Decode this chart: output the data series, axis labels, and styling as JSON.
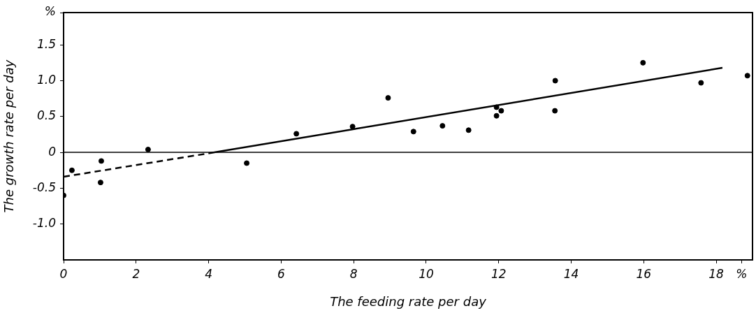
{
  "chart_data": {
    "type": "scatter",
    "xlabel": "The feeding rate per day",
    "ylabel": "The growth rate per day",
    "series": [
      {
        "color": "#000000",
        "x": [
          0,
          0.23,
          1.04,
          1.02,
          2.33,
          5.05,
          6.42,
          7.97,
          8.95,
          9.65,
          10.45,
          11.17,
          11.94,
          12.07,
          11.94,
          13.56,
          13.55,
          15.98,
          17.58,
          18.86
        ],
        "values": [
          -0.6,
          -0.25,
          -0.12,
          -0.42,
          0.04,
          -0.15,
          0.26,
          0.36,
          0.76,
          0.29,
          0.37,
          0.31,
          0.63,
          0.58,
          0.51,
          1.0,
          0.58,
          1.25,
          0.97,
          1.07
        ]
      },
      {
        "type": "line",
        "color": "#000000",
        "line_style": "dashed",
        "marker": "none",
        "x": [
          0,
          4.16
        ],
        "values": [
          -0.34,
          0
        ]
      },
      {
        "type": "line",
        "color": "#000000",
        "line_style": "solid",
        "marker": "none",
        "x": [
          4.16,
          18.17
        ],
        "values": [
          0,
          1.18
        ]
      }
    ],
    "marker": "circle",
    "xlim": [
      0,
      19
    ],
    "xticks": [
      0,
      2,
      4,
      6,
      8,
      10,
      12,
      14,
      16,
      18,
      {
        "value": 18.7,
        "label": "%"
      }
    ],
    "ylim": [
      -1.5,
      1.95
    ],
    "yticks": [
      {
        "value": -1,
        "label": "-1.0"
      },
      -0.5,
      0,
      0.5,
      {
        "value": 1,
        "label": "1.0"
      },
      1.5,
      {
        "value": 1.95,
        "label": "%"
      }
    ],
    "ref_lines": [
      {
        "axis": "y",
        "value": 0,
        "color": "#000000"
      }
    ]
  }
}
